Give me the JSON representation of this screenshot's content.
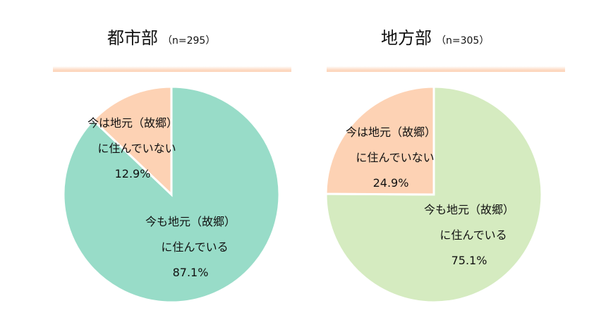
{
  "chart_data": [
    {
      "type": "pie",
      "title": "都市部",
      "subtitle": "（n=295）",
      "slices": [
        {
          "label": [
            "今も地元（故郷）",
            "に住んでいる"
          ],
          "value": 87.1,
          "value_label": "87.1%",
          "color": "#98dcc8"
        },
        {
          "label": [
            "今は地元（故郷）",
            "に住んでいない"
          ],
          "value": 12.9,
          "value_label": "12.9%",
          "color": "#fdd2b4"
        }
      ]
    },
    {
      "type": "pie",
      "title": "地方部",
      "subtitle": "（n=305）",
      "slices": [
        {
          "label": [
            "今も地元（故郷）",
            "に住んでいる"
          ],
          "value": 75.1,
          "value_label": "75.1%",
          "color": "#d5ebc0"
        },
        {
          "label": [
            "今は地元（故郷）",
            "に住んでいない"
          ],
          "value": 24.9,
          "value_label": "24.9%",
          "color": "#fdd2b4"
        }
      ]
    }
  ]
}
